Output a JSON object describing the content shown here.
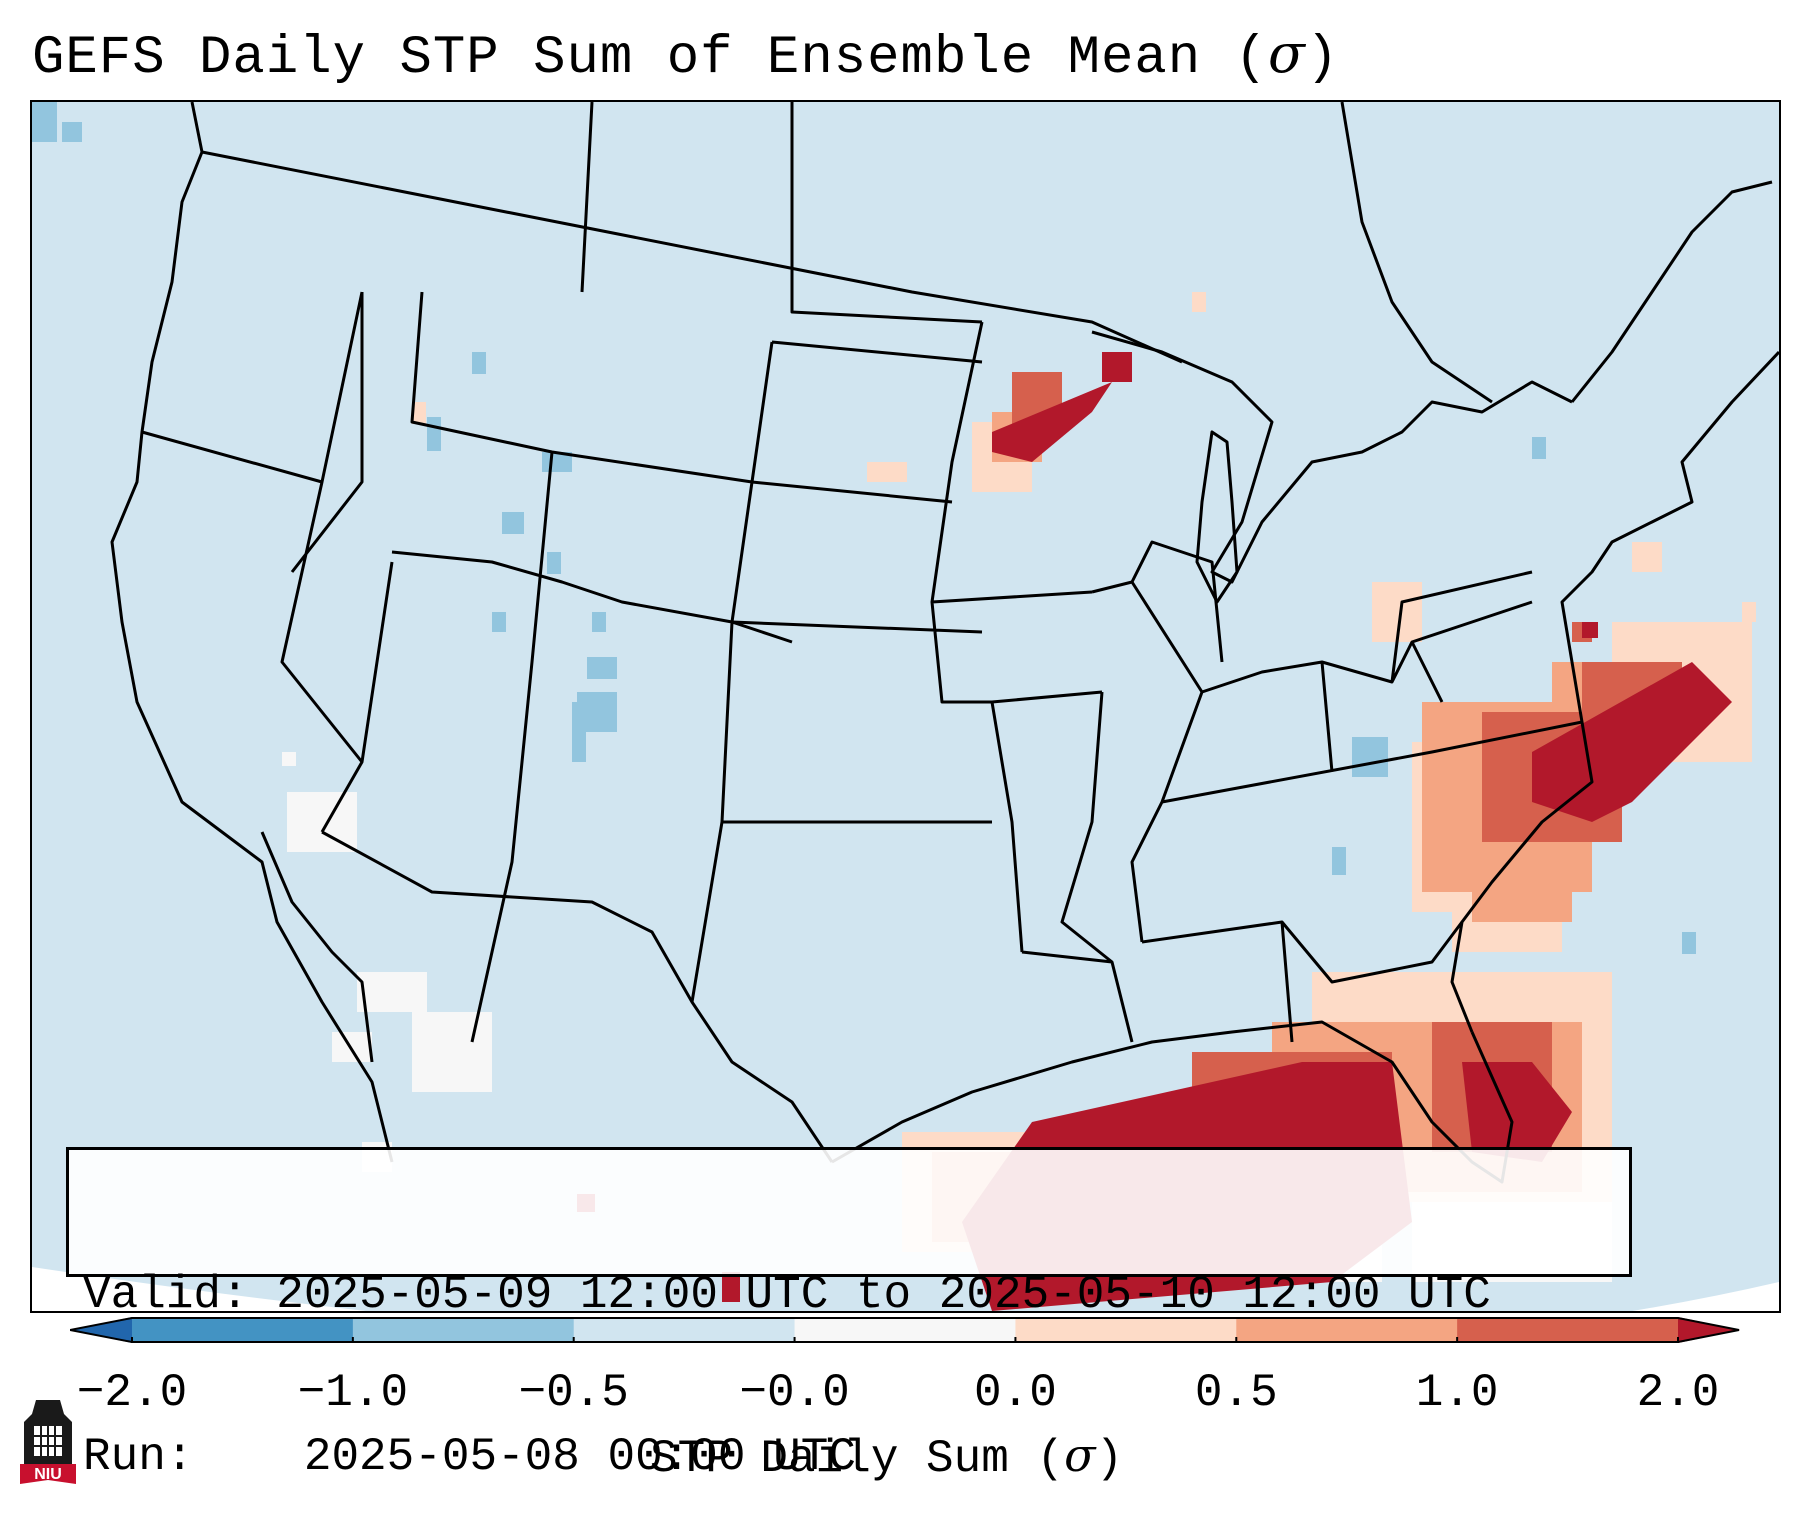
{
  "title": {
    "prefix": "GEFS Daily STP Sum of Ensemble Mean (",
    "symbol": "σ",
    "suffix": ")"
  },
  "info": {
    "valid_label": "Valid:",
    "valid_value": "2025-05-09 12:00 UTC to 2025-05-10 12:00 UTC",
    "run_label": "Run:",
    "run_value": "2025-05-08 00:00 UTC"
  },
  "colorbar": {
    "label_prefix": "STP Daily Sum (",
    "label_symbol": "σ",
    "label_suffix": ")",
    "ticks": [
      "−2.0",
      "−1.0",
      "−0.5",
      "−0.0",
      "0.0",
      "0.5",
      "1.0",
      "2.0"
    ],
    "bins": [
      {
        "from": "-2.0",
        "to": "-1.0",
        "color": "#4393c3"
      },
      {
        "from": "-1.0",
        "to": "-0.5",
        "color": "#92c5de"
      },
      {
        "from": "-0.5",
        "to": "-0.0",
        "color": "#d1e5f0"
      },
      {
        "from": "-0.0",
        "to": "0.0",
        "color": "#f7f7f7"
      },
      {
        "from": "0.0",
        "to": "0.5",
        "color": "#fddbc7"
      },
      {
        "from": "0.5",
        "to": "1.0",
        "color": "#f4a582"
      },
      {
        "from": "1.0",
        "to": "2.0",
        "color": "#d6604d"
      }
    ],
    "extend_low_color": "#2166ac",
    "extend_high_color": "#b2182b"
  },
  "colors": {
    "background_field": "#d1e5f0",
    "near_zero": "#f7f7f7",
    "light_positive": "#fddbc7",
    "moderate_positive": "#f4a582",
    "high_positive": "#d6604d",
    "extreme_positive": "#b2182b",
    "light_negative": "#92c5de"
  },
  "logo": {
    "text": "NIU",
    "icon": "niu-tower-logo"
  }
}
